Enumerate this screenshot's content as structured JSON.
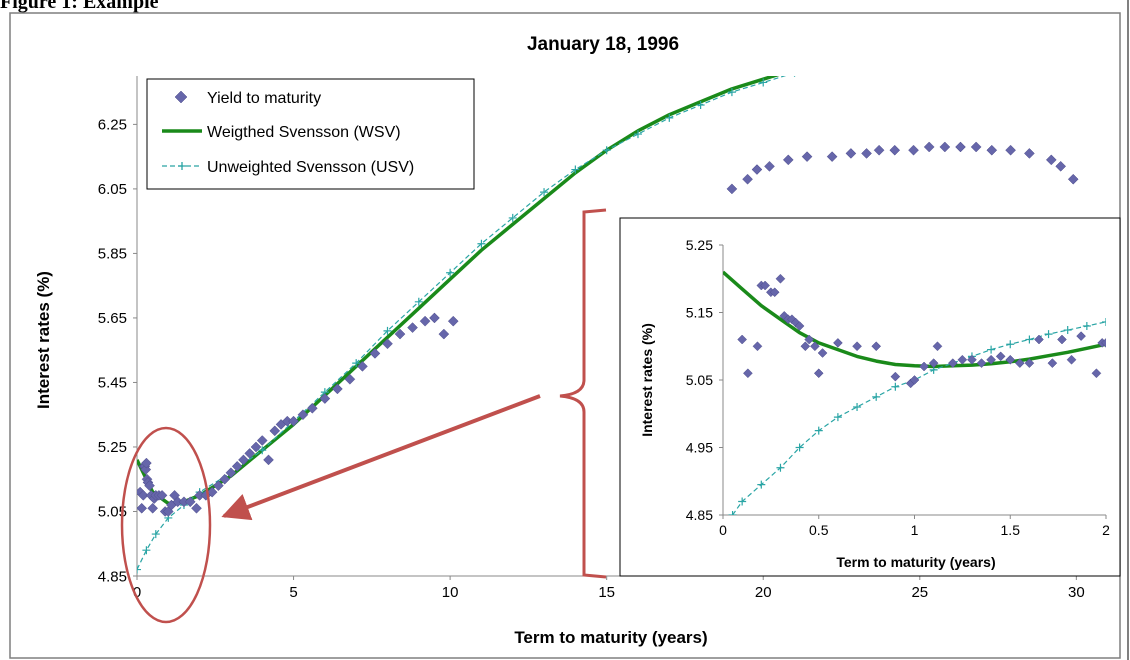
{
  "figure": {
    "caption_visible": "Figure 1: Example"
  },
  "chart_data": [
    {
      "type": "scatter",
      "title": "January 18, 1996",
      "xlabel": "Term to maturity (years)",
      "ylabel": "Interest rates (%)",
      "xlim": [
        0,
        30.5
      ],
      "ylim": [
        4.85,
        6.4
      ],
      "xticks": [
        0,
        5,
        10,
        15,
        20,
        25,
        30
      ],
      "yticks": [
        4.85,
        5.05,
        5.25,
        5.45,
        5.65,
        5.85,
        6.05,
        6.25
      ],
      "ytick_labels": [
        "4.85",
        "5.05",
        "5.25",
        "5.45",
        "5.65",
        "5.85",
        "6.05",
        "6.25"
      ],
      "grid": false,
      "legend_position": "top-left",
      "series": [
        {
          "name": "Yield to maturity",
          "kind": "markers",
          "marker": "diamond",
          "color": "#6666aa",
          "points": [
            [
              0.1,
              5.11
            ],
            [
              0.15,
              5.06
            ],
            [
              0.2,
              5.1
            ],
            [
              0.22,
              5.19
            ],
            [
              0.25,
              5.19
            ],
            [
              0.28,
              5.18
            ],
            [
              0.3,
              5.2
            ],
            [
              0.32,
              5.15
            ],
            [
              0.35,
              5.14
            ],
            [
              0.4,
              5.13
            ],
            [
              0.45,
              5.1
            ],
            [
              0.5,
              5.06
            ],
            [
              0.55,
              5.09
            ],
            [
              0.6,
              5.1
            ],
            [
              0.7,
              5.1
            ],
            [
              0.8,
              5.1
            ],
            [
              0.9,
              5.05
            ],
            [
              1.0,
              5.05
            ],
            [
              1.1,
              5.07
            ],
            [
              1.2,
              5.1
            ],
            [
              1.3,
              5.08
            ],
            [
              1.5,
              5.08
            ],
            [
              1.7,
              5.08
            ],
            [
              1.9,
              5.06
            ],
            [
              2.0,
              5.1
            ],
            [
              2.2,
              5.1
            ],
            [
              2.4,
              5.11
            ],
            [
              2.6,
              5.13
            ],
            [
              2.8,
              5.15
            ],
            [
              3.0,
              5.17
            ],
            [
              3.2,
              5.19
            ],
            [
              3.4,
              5.21
            ],
            [
              3.6,
              5.23
            ],
            [
              3.8,
              5.25
            ],
            [
              4.0,
              5.27
            ],
            [
              4.2,
              5.21
            ],
            [
              4.4,
              5.3
            ],
            [
              4.6,
              5.32
            ],
            [
              4.8,
              5.33
            ],
            [
              5.0,
              5.33
            ],
            [
              5.3,
              5.35
            ],
            [
              5.6,
              5.37
            ],
            [
              6.0,
              5.4
            ],
            [
              6.4,
              5.43
            ],
            [
              6.8,
              5.46
            ],
            [
              7.2,
              5.5
            ],
            [
              7.6,
              5.54
            ],
            [
              8.0,
              5.57
            ],
            [
              8.4,
              5.6
            ],
            [
              8.8,
              5.62
            ],
            [
              9.2,
              5.64
            ],
            [
              9.5,
              5.65
            ],
            [
              9.8,
              5.6
            ],
            [
              10.1,
              5.64
            ],
            [
              19.0,
              6.05
            ],
            [
              19.5,
              6.08
            ],
            [
              19.8,
              6.11
            ],
            [
              20.2,
              6.12
            ],
            [
              20.8,
              6.14
            ],
            [
              21.4,
              6.15
            ],
            [
              22.2,
              6.15
            ],
            [
              22.8,
              6.16
            ],
            [
              23.3,
              6.16
            ],
            [
              23.7,
              6.17
            ],
            [
              24.2,
              6.17
            ],
            [
              24.8,
              6.17
            ],
            [
              25.3,
              6.18
            ],
            [
              25.8,
              6.18
            ],
            [
              26.3,
              6.18
            ],
            [
              26.8,
              6.18
            ],
            [
              27.3,
              6.17
            ],
            [
              27.9,
              6.17
            ],
            [
              28.5,
              6.16
            ],
            [
              29.2,
              6.14
            ],
            [
              29.5,
              6.12
            ],
            [
              29.9,
              6.08
            ]
          ]
        },
        {
          "name": "Weigthed Svensson (WSV)",
          "kind": "line",
          "color": "#1a8a1a",
          "points": [
            [
              0,
              5.21
            ],
            [
              0.5,
              5.11
            ],
            [
              1,
              5.075
            ],
            [
              1.5,
              5.08
            ],
            [
              2,
              5.1
            ],
            [
              3,
              5.16
            ],
            [
              4,
              5.24
            ],
            [
              5,
              5.32
            ],
            [
              6,
              5.41
            ],
            [
              7,
              5.5
            ],
            [
              8,
              5.59
            ],
            [
              9,
              5.68
            ],
            [
              10,
              5.77
            ],
            [
              11,
              5.86
            ],
            [
              12,
              5.94
            ],
            [
              13,
              6.02
            ],
            [
              14,
              6.1
            ],
            [
              15,
              6.17
            ],
            [
              16,
              6.23
            ],
            [
              17,
              6.28
            ],
            [
              18,
              6.32
            ],
            [
              19,
              6.36
            ],
            [
              20,
              6.39
            ],
            [
              21,
              6.42
            ]
          ]
        },
        {
          "name": "Unweighted Svensson (USV)",
          "kind": "dashed-line-cross-markers",
          "color": "#2aa5a5",
          "points": [
            [
              0,
              4.87
            ],
            [
              0.3,
              4.93
            ],
            [
              0.6,
              4.98
            ],
            [
              1,
              5.03
            ],
            [
              1.5,
              5.07
            ],
            [
              2,
              5.11
            ],
            [
              3,
              5.17
            ],
            [
              4,
              5.24
            ],
            [
              5,
              5.33
            ],
            [
              6,
              5.42
            ],
            [
              7,
              5.51
            ],
            [
              8,
              5.61
            ],
            [
              9,
              5.7
            ],
            [
              10,
              5.79
            ],
            [
              11,
              5.88
            ],
            [
              12,
              5.96
            ],
            [
              13,
              6.04
            ],
            [
              14,
              6.11
            ],
            [
              15,
              6.17
            ],
            [
              16,
              6.22
            ],
            [
              17,
              6.27
            ],
            [
              18,
              6.31
            ],
            [
              19,
              6.35
            ],
            [
              20,
              6.38
            ],
            [
              21,
              6.41
            ]
          ]
        }
      ]
    },
    {
      "type": "scatter",
      "title": "",
      "xlabel": "Term to maturity (years)",
      "ylabel": "Interest rates (%)",
      "xlim": [
        0,
        2
      ],
      "ylim": [
        4.85,
        5.25
      ],
      "xticks": [
        0,
        0.5,
        1,
        1.5,
        2
      ],
      "xtick_labels": [
        "0",
        "0.5",
        "1",
        "1.5",
        "2"
      ],
      "yticks": [
        4.85,
        4.95,
        5.05,
        5.15,
        5.25
      ],
      "ytick_labels": [
        "4.85",
        "4.95",
        "5.05",
        "5.15",
        "5.25"
      ],
      "grid": false,
      "series": [
        {
          "name": "Yield to maturity",
          "kind": "markers",
          "marker": "diamond",
          "color": "#6666aa",
          "points": [
            [
              0.1,
              5.11
            ],
            [
              0.13,
              5.06
            ],
            [
              0.18,
              5.1
            ],
            [
              0.2,
              5.19
            ],
            [
              0.22,
              5.19
            ],
            [
              0.25,
              5.18
            ],
            [
              0.27,
              5.18
            ],
            [
              0.3,
              5.2
            ],
            [
              0.32,
              5.145
            ],
            [
              0.34,
              5.14
            ],
            [
              0.36,
              5.14
            ],
            [
              0.38,
              5.135
            ],
            [
              0.4,
              5.13
            ],
            [
              0.43,
              5.1
            ],
            [
              0.45,
              5.11
            ],
            [
              0.48,
              5.1
            ],
            [
              0.5,
              5.06
            ],
            [
              0.52,
              5.09
            ],
            [
              0.6,
              5.105
            ],
            [
              0.7,
              5.1
            ],
            [
              0.8,
              5.1
            ],
            [
              0.9,
              5.055
            ],
            [
              0.98,
              5.045
            ],
            [
              1.0,
              5.05
            ],
            [
              1.05,
              5.07
            ],
            [
              1.1,
              5.075
            ],
            [
              1.12,
              5.1
            ],
            [
              1.2,
              5.075
            ],
            [
              1.25,
              5.08
            ],
            [
              1.3,
              5.08
            ],
            [
              1.35,
              5.075
            ],
            [
              1.4,
              5.08
            ],
            [
              1.45,
              5.085
            ],
            [
              1.5,
              5.08
            ],
            [
              1.55,
              5.075
            ],
            [
              1.6,
              5.075
            ],
            [
              1.65,
              5.11
            ],
            [
              1.72,
              5.075
            ],
            [
              1.77,
              5.11
            ],
            [
              1.82,
              5.08
            ],
            [
              1.87,
              5.115
            ],
            [
              1.95,
              5.06
            ],
            [
              1.98,
              5.105
            ],
            [
              2.0,
              5.105
            ]
          ]
        },
        {
          "name": "Weigthed Svensson (WSV)",
          "kind": "line",
          "color": "#1a8a1a",
          "points": [
            [
              0,
              5.21
            ],
            [
              0.1,
              5.185
            ],
            [
              0.2,
              5.16
            ],
            [
              0.3,
              5.14
            ],
            [
              0.4,
              5.12
            ],
            [
              0.5,
              5.105
            ],
            [
              0.6,
              5.095
            ],
            [
              0.7,
              5.085
            ],
            [
              0.8,
              5.078
            ],
            [
              0.9,
              5.073
            ],
            [
              1.0,
              5.071
            ],
            [
              1.1,
              5.07
            ],
            [
              1.2,
              5.071
            ],
            [
              1.3,
              5.072
            ],
            [
              1.4,
              5.074
            ],
            [
              1.5,
              5.077
            ],
            [
              1.6,
              5.081
            ],
            [
              1.7,
              5.086
            ],
            [
              1.8,
              5.091
            ],
            [
              1.9,
              5.097
            ],
            [
              2.0,
              5.103
            ]
          ]
        },
        {
          "name": "Unweighted Svensson (USV)",
          "kind": "dashed-line-cross-markers",
          "color": "#2aa5a5",
          "points": [
            [
              0.05,
              4.85
            ],
            [
              0.1,
              4.87
            ],
            [
              0.2,
              4.895
            ],
            [
              0.3,
              4.92
            ],
            [
              0.4,
              4.95
            ],
            [
              0.5,
              4.975
            ],
            [
              0.6,
              4.995
            ],
            [
              0.7,
              5.01
            ],
            [
              0.8,
              5.025
            ],
            [
              0.9,
              5.04
            ],
            [
              1.0,
              5.05
            ],
            [
              1.1,
              5.065
            ],
            [
              1.2,
              5.075
            ],
            [
              1.3,
              5.085
            ],
            [
              1.4,
              5.095
            ],
            [
              1.5,
              5.103
            ],
            [
              1.6,
              5.11
            ],
            [
              1.7,
              5.118
            ],
            [
              1.8,
              5.124
            ],
            [
              1.9,
              5.13
            ],
            [
              2.0,
              5.136
            ]
          ]
        }
      ]
    }
  ],
  "annotations": {
    "circle": "zoom region ellipse",
    "arrow": "points from inset to zoom region",
    "brace": "bracket beside inset",
    "colors": {
      "highlight": "#c0504d"
    }
  }
}
